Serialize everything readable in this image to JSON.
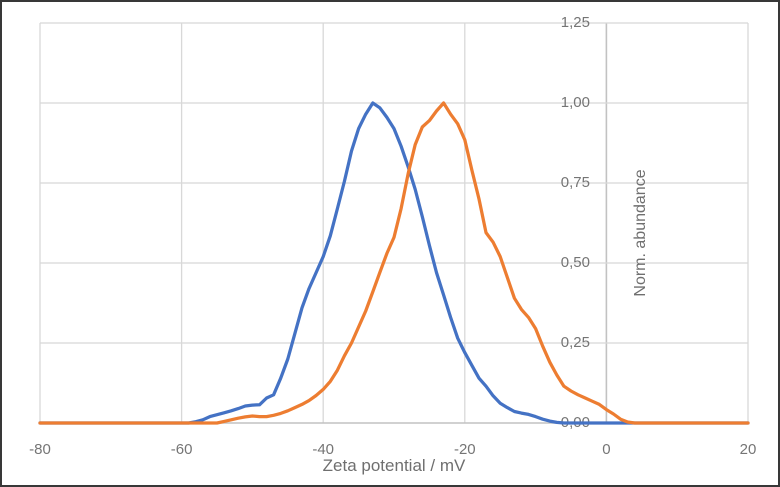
{
  "colors": {
    "background": "#ffffff",
    "frame_border": "#383838",
    "gridline": "#d8d8d8",
    "axis_line": "#c2c2c2",
    "tick_label": "#757575",
    "axis_title": "#6f6f6f"
  },
  "chart_data": {
    "type": "line",
    "title": "",
    "xlabel": "Zeta potential / mV",
    "ylabel": "Norm. abundance",
    "xlim": [
      -80,
      20
    ],
    "ylim": [
      0,
      1.25
    ],
    "x_ticks": [
      -80,
      -60,
      -40,
      -20,
      0,
      20
    ],
    "x_tick_labels": [
      "-80",
      "-60",
      "-40",
      "-20",
      "0",
      "20"
    ],
    "y_ticks": [
      0,
      0.25,
      0.5,
      0.75,
      1.0,
      1.25
    ],
    "y_tick_labels": [
      "0,00",
      "0,25",
      "0,50",
      "0,75",
      "1,00",
      "1,25"
    ],
    "grid": true,
    "legend": "none",
    "decimal_separator": ",",
    "value_axis_crosses_at": 0,
    "series": [
      {
        "name": "blue-distribution",
        "color": "#4472C4",
        "peak": {
          "x": -33,
          "y": 1.0
        },
        "points": [
          [
            -80,
            0
          ],
          [
            -59,
            0
          ],
          [
            -58,
            0.004
          ],
          [
            -57,
            0.01
          ],
          [
            -56,
            0.02
          ],
          [
            -55,
            0.026
          ],
          [
            -54,
            0.032
          ],
          [
            -53,
            0.038
          ],
          [
            -52,
            0.045
          ],
          [
            -51,
            0.053
          ],
          [
            -50,
            0.056
          ],
          [
            -49,
            0.057
          ],
          [
            -48,
            0.078
          ],
          [
            -47,
            0.088
          ],
          [
            -46,
            0.14
          ],
          [
            -45,
            0.2
          ],
          [
            -44,
            0.28
          ],
          [
            -43,
            0.36
          ],
          [
            -42,
            0.42
          ],
          [
            -41,
            0.47
          ],
          [
            -40,
            0.52
          ],
          [
            -39,
            0.585
          ],
          [
            -38,
            0.67
          ],
          [
            -37,
            0.755
          ],
          [
            -36,
            0.85
          ],
          [
            -35,
            0.92
          ],
          [
            -34,
            0.965
          ],
          [
            -33,
            1.0
          ],
          [
            -32,
            0.985
          ],
          [
            -31,
            0.955
          ],
          [
            -30,
            0.92
          ],
          [
            -29,
            0.865
          ],
          [
            -28,
            0.8
          ],
          [
            -27,
            0.73
          ],
          [
            -26,
            0.645
          ],
          [
            -25,
            0.555
          ],
          [
            -24,
            0.47
          ],
          [
            -23,
            0.4
          ],
          [
            -22,
            0.33
          ],
          [
            -21,
            0.265
          ],
          [
            -20,
            0.22
          ],
          [
            -19,
            0.18
          ],
          [
            -18,
            0.14
          ],
          [
            -17,
            0.115
          ],
          [
            -16,
            0.085
          ],
          [
            -15,
            0.062
          ],
          [
            -14,
            0.048
          ],
          [
            -13,
            0.036
          ],
          [
            -12,
            0.031
          ],
          [
            -11,
            0.027
          ],
          [
            -10,
            0.02
          ],
          [
            -9,
            0.012
          ],
          [
            -8,
            0.006
          ],
          [
            -7,
            0.002
          ],
          [
            -6,
            0
          ],
          [
            20,
            0
          ]
        ]
      },
      {
        "name": "orange-distribution",
        "color": "#ED7D31",
        "peak": {
          "x": -23,
          "y": 1.0
        },
        "points": [
          [
            -80,
            0
          ],
          [
            -55,
            0
          ],
          [
            -54,
            0.005
          ],
          [
            -53,
            0.01
          ],
          [
            -52,
            0.015
          ],
          [
            -51,
            0.019
          ],
          [
            -50,
            0.022
          ],
          [
            -49,
            0.02
          ],
          [
            -48,
            0.02
          ],
          [
            -47,
            0.024
          ],
          [
            -46,
            0.03
          ],
          [
            -45,
            0.038
          ],
          [
            -44,
            0.048
          ],
          [
            -43,
            0.058
          ],
          [
            -42,
            0.07
          ],
          [
            -41,
            0.086
          ],
          [
            -40,
            0.105
          ],
          [
            -39,
            0.13
          ],
          [
            -38,
            0.165
          ],
          [
            -37,
            0.21
          ],
          [
            -36,
            0.25
          ],
          [
            -35,
            0.3
          ],
          [
            -34,
            0.35
          ],
          [
            -33,
            0.41
          ],
          [
            -32,
            0.47
          ],
          [
            -31,
            0.53
          ],
          [
            -30,
            0.58
          ],
          [
            -29,
            0.67
          ],
          [
            -28,
            0.78
          ],
          [
            -27,
            0.87
          ],
          [
            -26,
            0.925
          ],
          [
            -25,
            0.945
          ],
          [
            -24,
            0.975
          ],
          [
            -23,
            1.0
          ],
          [
            -22,
            0.965
          ],
          [
            -21,
            0.935
          ],
          [
            -20,
            0.885
          ],
          [
            -19,
            0.79
          ],
          [
            -18,
            0.7
          ],
          [
            -17,
            0.595
          ],
          [
            -16,
            0.565
          ],
          [
            -15,
            0.52
          ],
          [
            -14,
            0.455
          ],
          [
            -13,
            0.39
          ],
          [
            -12,
            0.355
          ],
          [
            -11,
            0.33
          ],
          [
            -10,
            0.295
          ],
          [
            -9,
            0.24
          ],
          [
            -8,
            0.19
          ],
          [
            -7,
            0.15
          ],
          [
            -6,
            0.115
          ],
          [
            -5,
            0.1
          ],
          [
            -4,
            0.088
          ],
          [
            -3,
            0.078
          ],
          [
            -2,
            0.068
          ],
          [
            -1,
            0.058
          ],
          [
            0,
            0.042
          ],
          [
            1,
            0.028
          ],
          [
            2,
            0.012
          ],
          [
            3,
            0.003
          ],
          [
            4,
            0
          ],
          [
            20,
            0
          ]
        ]
      }
    ]
  }
}
